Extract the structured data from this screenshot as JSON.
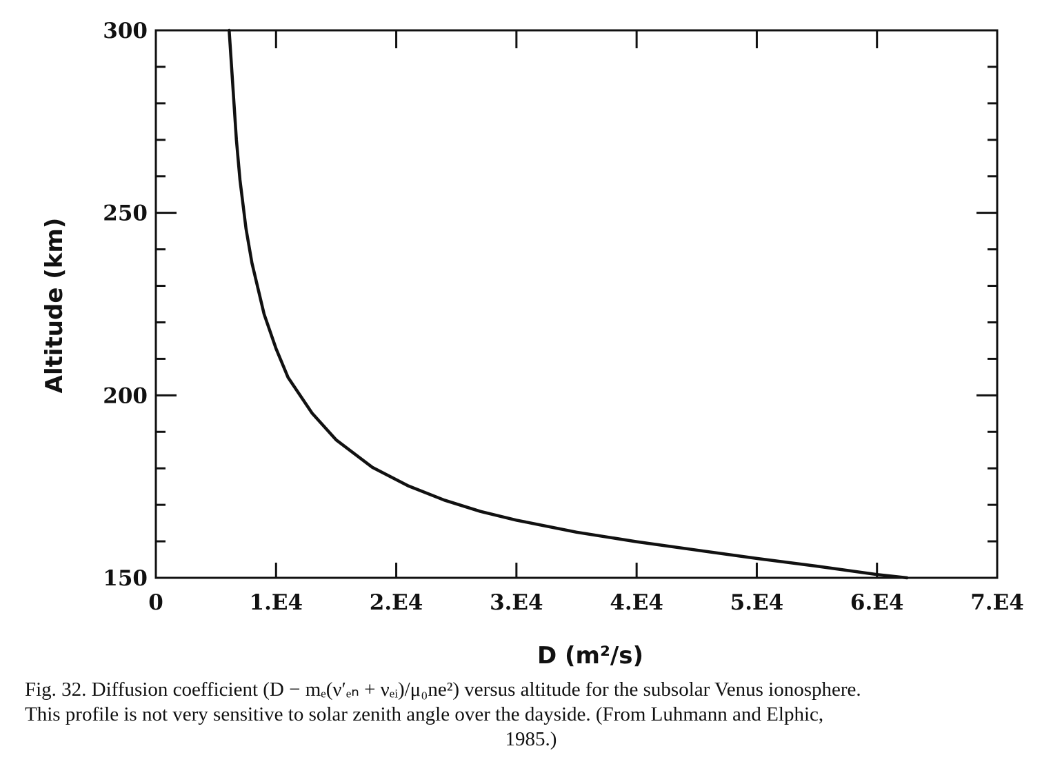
{
  "chart_data": {
    "type": "line",
    "xlabel": "D (m²/s)",
    "ylabel": "Altitude (km)",
    "xlim": [
      0,
      70000
    ],
    "ylim": [
      150,
      300
    ],
    "x_ticks": [
      0,
      10000,
      20000,
      30000,
      40000,
      50000,
      60000,
      70000
    ],
    "x_tick_labels": [
      "0",
      "1.E4",
      "2.E4",
      "3.E4",
      "4.E4",
      "5.E4",
      "6.E4",
      "7.E4"
    ],
    "y_ticks": [
      150,
      200,
      250,
      300
    ],
    "y_tick_labels": [
      "150",
      "200",
      "250",
      "300"
    ],
    "grid": false,
    "series": [
      {
        "x": [
          62500,
          60000,
          55000,
          50000,
          45000,
          40000,
          35000,
          30000,
          27000,
          24000,
          21000,
          18000,
          15000,
          13000,
          11000,
          10000,
          9000,
          8000,
          7500,
          7000,
          6700,
          6500,
          6300,
          6100
        ],
        "y": [
          150,
          150.9,
          153.2,
          155.3,
          157.6,
          159.9,
          162.5,
          165.8,
          168.2,
          171.3,
          175.2,
          180.3,
          187.8,
          195.1,
          204.9,
          212.8,
          222.3,
          236.2,
          245.7,
          259.0,
          270.0,
          280.0,
          290.0,
          300.0
        ]
      }
    ]
  },
  "caption": {
    "line1": "Fig. 32.    Diffusion coefficient (D − mₑ(ν′ₑₙ + νₑᵢ)/μ₀ne²) versus altitude for the subsolar Venus ionosphere.",
    "line2": "This profile is not very sensitive to solar zenith angle over the dayside. (From Luhmann and Elphic,",
    "line3": "1985.)"
  }
}
